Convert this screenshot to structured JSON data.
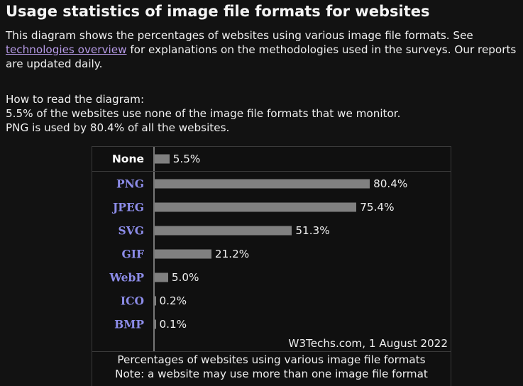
{
  "title": "Usage statistics of image file formats for websites",
  "intro": {
    "before": "This diagram shows the percentages of websites using various image file formats. See ",
    "link": "technologies overview",
    "after": " for explanations on the methodologies used in the surveys. Our reports are updated daily."
  },
  "howto": {
    "heading": "How to read the diagram:",
    "line1": "5.5% of the websites use none of the image file formats that we monitor.",
    "line2": "PNG is used by 80.4% of all the websites."
  },
  "chart_data": {
    "type": "bar",
    "orientation": "horizontal",
    "categories": [
      "None",
      "PNG",
      "JPEG",
      "SVG",
      "GIF",
      "WebP",
      "ICO",
      "BMP"
    ],
    "values": [
      5.5,
      80.4,
      75.4,
      51.3,
      21.2,
      5.0,
      0.2,
      0.1
    ],
    "value_labels": [
      "5.5%",
      "80.4%",
      "75.4%",
      "51.3%",
      "21.2%",
      "5.0%",
      "0.2%",
      "0.1%"
    ],
    "credit": "W3Techs.com, 1 August 2022",
    "caption": "Percentages of websites using various image file formats",
    "note": "Note: a website may use more than one image file format",
    "bar_color": "#808080",
    "label_color": "#8c8ce8"
  }
}
